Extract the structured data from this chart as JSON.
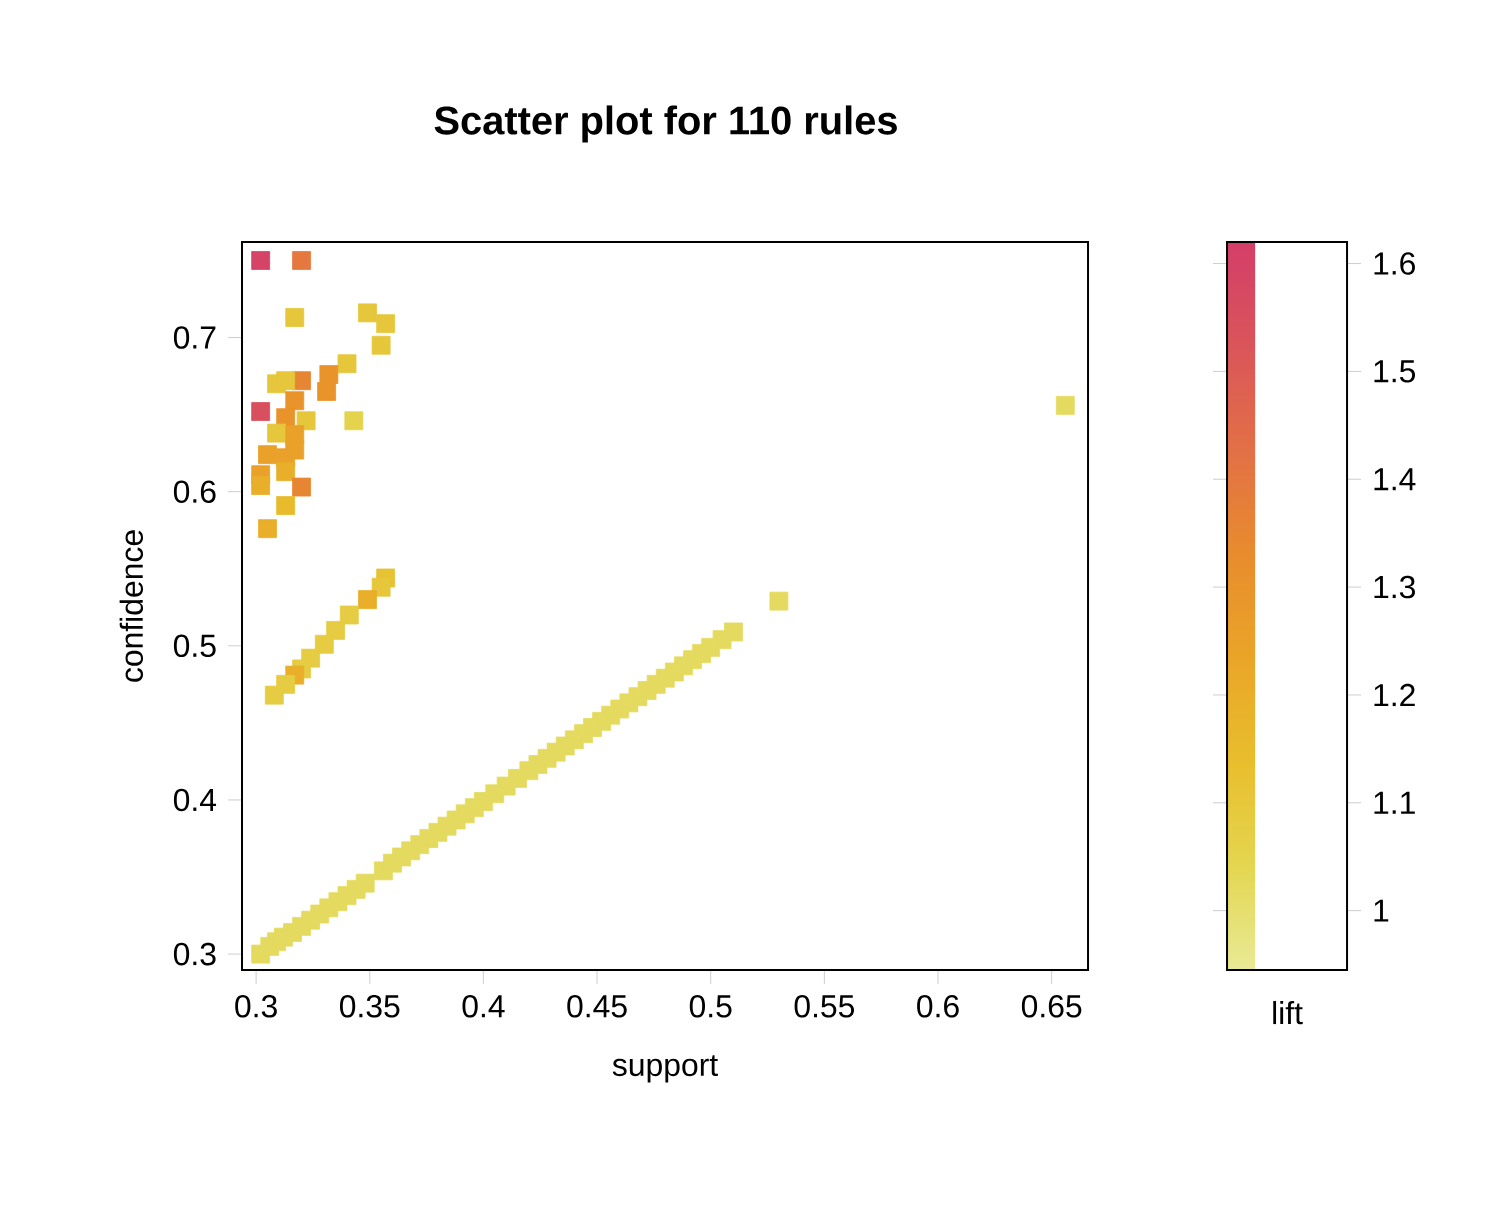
{
  "chart_data": {
    "type": "scatter",
    "title": "Scatter plot for 110 rules",
    "xlabel": "support",
    "ylabel": "confidence",
    "clabel": "lift",
    "marker": "square",
    "xlim": [
      0.2938,
      0.666
    ],
    "ylim": [
      0.2897,
      0.762
    ],
    "xticks": [
      0.3,
      0.35,
      0.4,
      0.45,
      0.5,
      0.55,
      0.6,
      0.65
    ],
    "yticks": [
      0.3,
      0.4,
      0.5,
      0.6,
      0.7
    ],
    "clim": [
      0.945,
      1.62
    ],
    "cticks": [
      1,
      1.1,
      1.2,
      1.3,
      1.4,
      1.5,
      1.6
    ],
    "x": [
      0.302,
      0.32,
      0.317,
      0.349,
      0.357,
      0.355,
      0.34,
      0.332,
      0.331,
      0.32,
      0.309,
      0.313,
      0.317,
      0.302,
      0.322,
      0.343,
      0.313,
      0.309,
      0.317,
      0.317,
      0.305,
      0.313,
      0.302,
      0.313,
      0.302,
      0.32,
      0.313,
      0.305,
      0.656,
      0.53,
      0.357,
      0.355,
      0.349,
      0.341,
      0.335,
      0.33,
      0.324,
      0.32,
      0.317,
      0.313,
      0.308,
      0.302,
      0.306,
      0.309,
      0.312,
      0.316,
      0.32,
      0.324,
      0.328,
      0.332,
      0.336,
      0.34,
      0.344,
      0.348,
      0.356,
      0.36,
      0.364,
      0.368,
      0.372,
      0.376,
      0.38,
      0.384,
      0.388,
      0.392,
      0.396,
      0.4,
      0.405,
      0.41,
      0.415,
      0.42,
      0.424,
      0.428,
      0.432,
      0.436,
      0.44,
      0.444,
      0.448,
      0.452,
      0.456,
      0.46,
      0.464,
      0.468,
      0.472,
      0.476,
      0.48,
      0.484,
      0.488,
      0.492,
      0.496,
      0.5,
      0.505,
      0.51
    ],
    "values": [
      0.75,
      0.75,
      0.713,
      0.716,
      0.709,
      0.695,
      0.683,
      0.676,
      0.665,
      0.672,
      0.67,
      0.672,
      0.659,
      0.652,
      0.646,
      0.646,
      0.648,
      0.638,
      0.637,
      0.627,
      0.624,
      0.622,
      0.611,
      0.613,
      0.604,
      0.603,
      0.591,
      0.576,
      0.656,
      0.529,
      0.544,
      0.538,
      0.53,
      0.52,
      0.51,
      0.501,
      0.492,
      0.485,
      0.481,
      0.475,
      0.468,
      0.3,
      0.305,
      0.308,
      0.311,
      0.314,
      0.318,
      0.322,
      0.326,
      0.33,
      0.334,
      0.338,
      0.342,
      0.346,
      0.354,
      0.359,
      0.363,
      0.367,
      0.371,
      0.375,
      0.379,
      0.383,
      0.387,
      0.391,
      0.395,
      0.399,
      0.404,
      0.409,
      0.414,
      0.419,
      0.423,
      0.427,
      0.431,
      0.435,
      0.439,
      0.443,
      0.447,
      0.451,
      0.455,
      0.459,
      0.463,
      0.467,
      0.471,
      0.475,
      0.479,
      0.483,
      0.487,
      0.491,
      0.495,
      0.499,
      0.504,
      0.509
    ],
    "cvalues": [
      1.6,
      1.4,
      1.1,
      1.1,
      1.1,
      1.1,
      1.1,
      1.3,
      1.3,
      1.35,
      1.1,
      1.1,
      1.3,
      1.55,
      1.1,
      1.05,
      1.3,
      1.1,
      1.25,
      1.25,
      1.25,
      1.25,
      1.25,
      1.2,
      1.2,
      1.35,
      1.15,
      1.2,
      1.02,
      1.02,
      1.12,
      1.1,
      1.2,
      1.08,
      1.08,
      1.08,
      1.08,
      1.08,
      1.2,
      1.08,
      1.08,
      1.02,
      1.02,
      1.02,
      1.02,
      1.02,
      1.02,
      1.02,
      1.02,
      1.02,
      1.02,
      1.02,
      1.02,
      1.02,
      1.02,
      1.02,
      1.02,
      1.02,
      1.02,
      1.02,
      1.02,
      1.02,
      1.02,
      1.02,
      1.02,
      1.02,
      1.02,
      1.02,
      1.02,
      1.02,
      1.02,
      1.02,
      1.02,
      1.02,
      1.02,
      1.02,
      1.02,
      1.02,
      1.02,
      1.02,
      1.02,
      1.02,
      1.02,
      1.02,
      1.02,
      1.02,
      1.02,
      1.02,
      1.02,
      1.02,
      1.02,
      1.02
    ]
  }
}
